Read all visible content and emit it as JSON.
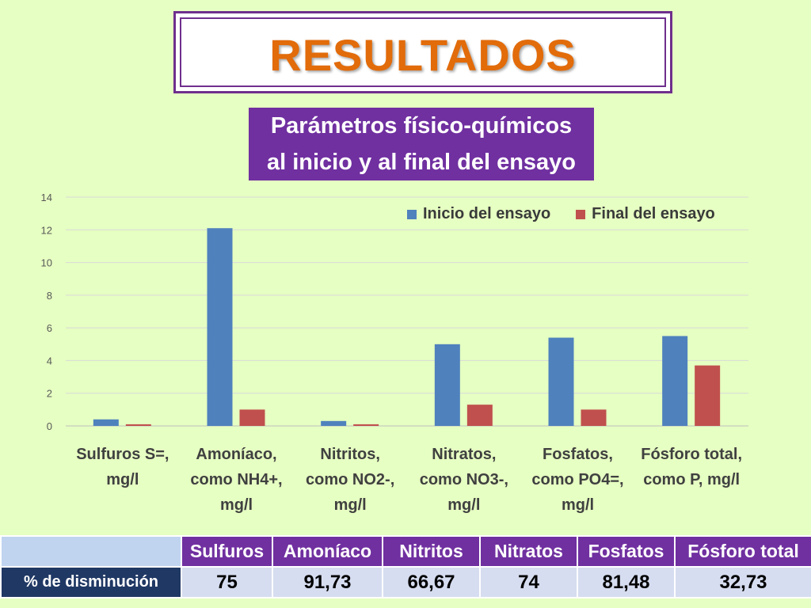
{
  "header": {
    "title": "RESULTADOS"
  },
  "chart_title": [
    "Parámetros físico-químicos",
    "al inicio y al final del ensayo"
  ],
  "colors": {
    "inicio": "#4f81bd",
    "final": "#c0504d",
    "accent": "#7030a0",
    "title": "#e26b0a"
  },
  "chart_data": {
    "type": "bar",
    "title": "Parámetros físico-químicos al inicio y al final del ensayo",
    "categories": [
      [
        "Sulfuros S=,",
        "mg/l"
      ],
      [
        "Amoníaco,",
        "como NH4+,",
        "mg/l"
      ],
      [
        "Nitritos,",
        "como NO2-,",
        "mg/l"
      ],
      [
        "Nitratos,",
        "como NO3-,",
        "mg/l"
      ],
      [
        "Fosfatos,",
        "como PO4=,",
        "mg/l"
      ],
      [
        "Fósforo total,",
        "como P, mg/l"
      ]
    ],
    "series": [
      {
        "name": "Inicio del ensayo",
        "values": [
          0.4,
          12.1,
          0.3,
          5.0,
          5.4,
          5.5
        ]
      },
      {
        "name": "Final del ensayo",
        "values": [
          0.1,
          1.0,
          0.1,
          1.3,
          1.0,
          3.7
        ]
      }
    ],
    "ylim": [
      0,
      14
    ],
    "yticks": [
      "0",
      "2",
      "4",
      "6",
      "8",
      "10",
      "12",
      "14"
    ],
    "grid": true,
    "legend": "top-right"
  },
  "summary_table": {
    "columns": [
      "Sulfuros",
      "Amoníaco",
      "Nitritos",
      "Nitratos",
      "Fosfatos",
      "Fósforo total"
    ],
    "row_label": "% de disminución",
    "values": [
      "75",
      "91,73",
      "66,67",
      "74",
      "81,48",
      "32,73"
    ]
  }
}
